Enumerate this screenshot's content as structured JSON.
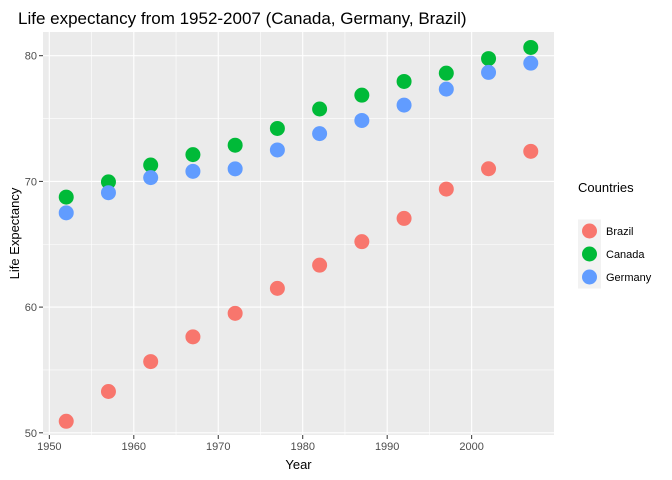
{
  "chart_data": {
    "type": "scatter",
    "title": "Life expectancy from 1952-2007 (Canada, Germany, Brazil)",
    "xlabel": "Year",
    "ylabel": "Life Expectancy",
    "xlim": [
      1949.25,
      2009.75
    ],
    "ylim": [
      49.825,
      81.885
    ],
    "x_ticks": [
      1950,
      1960,
      1970,
      1980,
      1990,
      2000
    ],
    "y_ticks": [
      50,
      60,
      70,
      80
    ],
    "grid": true,
    "legend": {
      "title": "Countries",
      "placement": "right"
    },
    "x": [
      1952,
      1957,
      1962,
      1967,
      1972,
      1977,
      1982,
      1987,
      1992,
      1997,
      2002,
      2007
    ],
    "series": [
      {
        "name": "Brazil",
        "color": "#F8766D",
        "values": [
          50.917,
          53.285,
          55.665,
          57.632,
          59.504,
          61.489,
          63.336,
          65.205,
          67.057,
          69.388,
          71.006,
          72.39
        ]
      },
      {
        "name": "Canada",
        "color": "#00BA38",
        "values": [
          68.75,
          69.96,
          71.3,
          72.13,
          72.88,
          74.21,
          75.76,
          76.86,
          77.95,
          78.61,
          79.77,
          80.653
        ]
      },
      {
        "name": "Germany",
        "color": "#619CFF",
        "values": [
          67.5,
          69.1,
          70.3,
          70.8,
          71.0,
          72.5,
          73.8,
          74.847,
          76.07,
          77.34,
          78.67,
          79.406
        ]
      }
    ]
  }
}
